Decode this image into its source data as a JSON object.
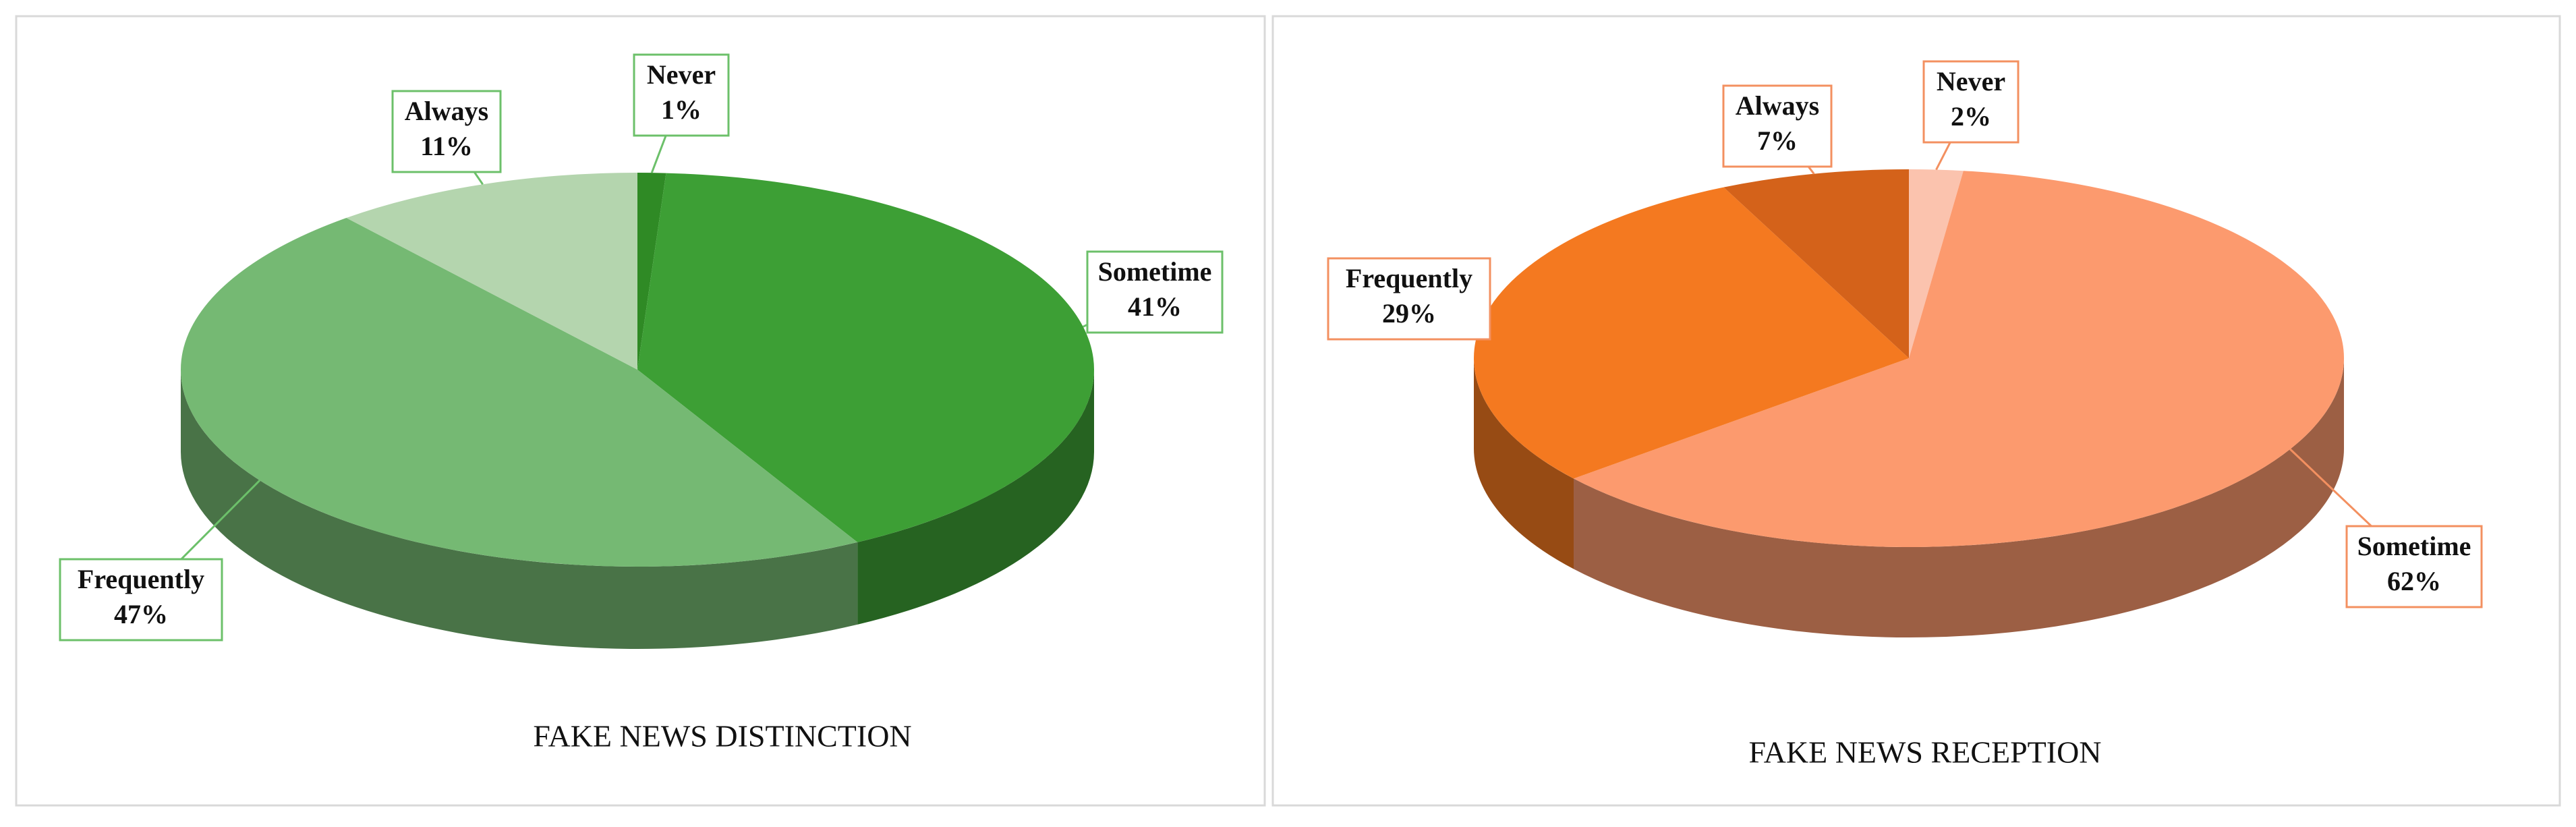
{
  "chart_data": [
    {
      "type": "pie3d",
      "title": "FAKE NEWS DISTINCTION",
      "categories": [
        "Never",
        "Sometime",
        "Frequently",
        "Always"
      ],
      "values": [
        1,
        41,
        47,
        11
      ],
      "value_labels": [
        "1%",
        "41%",
        "47%",
        "11%"
      ],
      "colors": [
        "#2f8a25",
        "#3d9f35",
        "#75b973",
        "#b4d5ae"
      ],
      "label_border_color": "#6cc06a"
    },
    {
      "type": "pie3d",
      "title": "FAKE NEWS RECEPTION",
      "categories": [
        "Never",
        "Sometime",
        "Frequently",
        "Always"
      ],
      "values": [
        2,
        62,
        29,
        7
      ],
      "value_labels": [
        "2%",
        "62%",
        "29%",
        "7%"
      ],
      "colors": [
        "#fbc3ae",
        "#fc9a6e",
        "#f47920",
        "#d4621a"
      ],
      "label_border_color": "#f39060"
    }
  ]
}
